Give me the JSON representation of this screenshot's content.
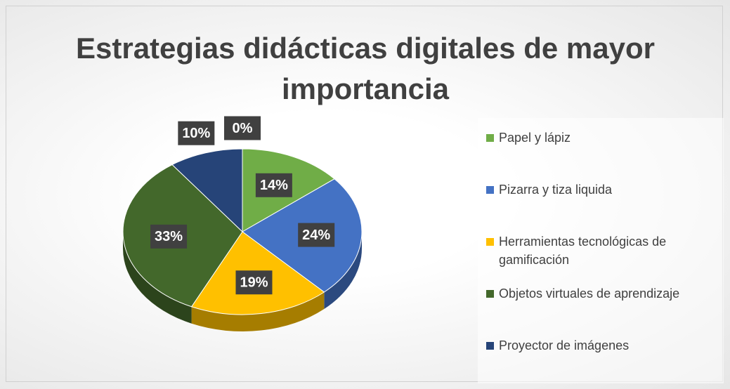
{
  "chart_data": {
    "type": "pie",
    "title": "Estrategias didácticas digitales de mayor importancia",
    "categories": [
      "Papel y lápiz",
      "Pizarra y tiza liquida",
      "Herramientas tecnológicas de gamificación",
      "Objetos virtuales de aprendizaje",
      "Proyector de imágenes",
      null
    ],
    "values": [
      14,
      24,
      19,
      33,
      10,
      0
    ],
    "value_labels": [
      "14%",
      "24%",
      "19%",
      "33%",
      "10%",
      "0%"
    ],
    "colors": [
      "#70ad47",
      "#4472c4",
      "#ffc000",
      "#43682b",
      "#264478"
    ],
    "legend": "right"
  }
}
